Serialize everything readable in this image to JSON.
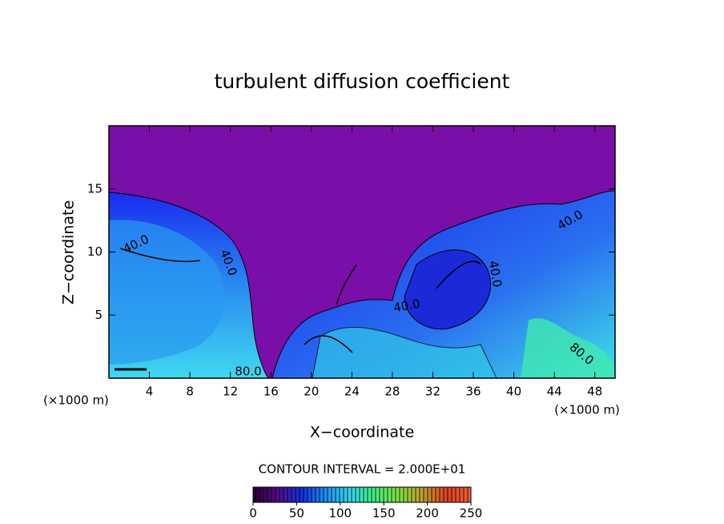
{
  "chart_data": {
    "type": "contour",
    "title": "turbulent diffusion coefficient",
    "x_label": "X−coordinate",
    "y_label": "Z−coordinate",
    "x_unit_label": "(×1000 m)",
    "y_unit_label": "(×1000 m)",
    "xlim": [
      0,
      50
    ],
    "xticks": [
      4,
      8,
      12,
      16,
      20,
      24,
      28,
      32,
      36,
      40,
      44,
      48
    ],
    "ylim": [
      0,
      20
    ],
    "yticks": [
      5,
      10,
      15
    ],
    "contour_interval_text": "CONTOUR INTERVAL = 2.000E+01",
    "contour_labels": [
      "40.0",
      "40.0",
      "40.0",
      "40.0",
      "40.0",
      "80.0",
      "80.0"
    ],
    "colorbar": {
      "lim": [
        0,
        250
      ],
      "ticks": [
        0,
        50,
        100,
        150,
        200,
        250
      ],
      "colormap": [
        "#2a0030",
        "#5a0a8a",
        "#1030e0",
        "#2090f0",
        "#30d8f0",
        "#40f080",
        "#80e040",
        "#c0a030",
        "#e04020",
        "#f06040"
      ]
    }
  }
}
